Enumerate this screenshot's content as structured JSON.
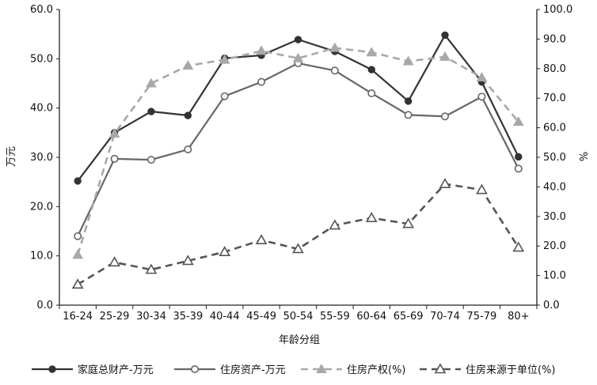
{
  "chart_data": {
    "type": "line",
    "categories": [
      "16-24",
      "25-29",
      "30-34",
      "35-39",
      "40-44",
      "45-49",
      "50-54",
      "55-59",
      "60-64",
      "65-69",
      "70-74",
      "75-79",
      "80+"
    ],
    "xlabel": "年龄分组",
    "ylabel_left": "万元",
    "ylabel_right": "%",
    "ylim_left": [
      0,
      60
    ],
    "ylim_right": [
      0,
      100
    ],
    "yticks_left": [
      "0.0",
      "10.0",
      "20.0",
      "30.0",
      "40.0",
      "50.0",
      "60.0"
    ],
    "yticks_right": [
      "0.0",
      "10.0",
      "20.0",
      "30.0",
      "40.0",
      "50.0",
      "60.0",
      "70.0",
      "80.0",
      "90.0",
      "100.0"
    ],
    "series": [
      {
        "name": "家庭总财产-万元",
        "axis": "left",
        "style": "solid",
        "marker": "filled-circle",
        "color": "#333333",
        "values": [
          25.2,
          35.0,
          39.3,
          38.5,
          50.1,
          50.7,
          53.9,
          51.5,
          47.8,
          41.4,
          54.8,
          45.3,
          30.1
        ]
      },
      {
        "name": "住房资产-万元",
        "axis": "left",
        "style": "solid",
        "marker": "open-circle",
        "color": "#666666",
        "values": [
          14.0,
          29.7,
          29.5,
          31.6,
          42.4,
          45.3,
          49.1,
          47.6,
          43.0,
          38.6,
          38.3,
          42.3,
          27.7
        ]
      },
      {
        "name": "住房产权(%)",
        "axis": "right",
        "style": "dashed",
        "marker": "filled-triangle",
        "color": "#a8a8a8",
        "values": [
          17.0,
          58.0,
          75.0,
          81.0,
          83.0,
          86.0,
          83.5,
          87.0,
          85.5,
          82.5,
          84.0,
          77.0,
          62.0
        ]
      },
      {
        "name": "住房来源于单位(%)",
        "axis": "right",
        "style": "dashed",
        "marker": "open-triangle",
        "color": "#555555",
        "values": [
          7.0,
          14.5,
          12.0,
          15.0,
          18.0,
          22.0,
          19.0,
          27.0,
          29.5,
          27.5,
          41.0,
          39.0,
          19.5
        ]
      }
    ],
    "legend_position": "bottom"
  }
}
